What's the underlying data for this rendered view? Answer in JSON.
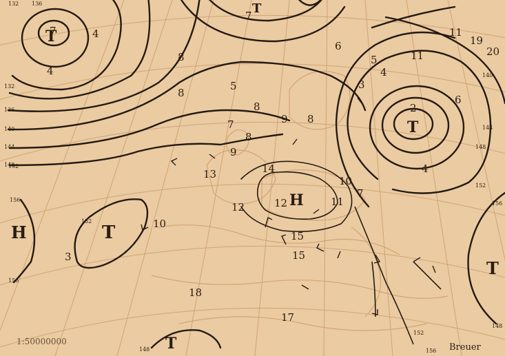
{
  "map": {
    "scale_text": "1:50000000",
    "author": "Breuer",
    "pressure_centers": [
      {
        "id": "low-iceland",
        "symbol": "T"
      },
      {
        "id": "low-russia",
        "symbol": "T"
      },
      {
        "id": "low-atlantic",
        "symbol": "T"
      },
      {
        "id": "low-east",
        "symbol": "T"
      },
      {
        "id": "low-africa",
        "symbol": "T"
      },
      {
        "id": "low-north",
        "symbol": "T"
      },
      {
        "id": "high-west",
        "symbol": "H"
      },
      {
        "id": "high-central",
        "symbol": "H"
      }
    ],
    "isobar_labels": [
      "132",
      "136",
      "140",
      "144",
      "148",
      "152",
      "156",
      "152",
      "156",
      "132",
      "136",
      "140",
      "144",
      "148",
      "152",
      "156",
      "148",
      "148",
      "152",
      "156"
    ],
    "station_values": [
      "7",
      "4",
      "4",
      "8",
      "8",
      "5",
      "8",
      "7",
      "9",
      "8",
      "8",
      "9",
      "7",
      "6",
      "5",
      "4",
      "3",
      "2",
      "4",
      "6",
      "11",
      "11",
      "10",
      "11",
      "19",
      "20",
      "13",
      "18",
      "17",
      "15",
      "15",
      "12",
      "12",
      "10",
      "7",
      "14",
      "3"
    ]
  }
}
